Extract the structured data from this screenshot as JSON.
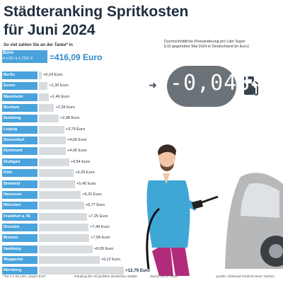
{
  "header": {
    "title_line1": "Städteranking Spritkosten",
    "title_line2": "für Juni 2024",
    "subtitle": "So viel zahlen Sie an der Tanke* in",
    "highlight_city": "Bonn",
    "highlight_formula": "4 x 60 l x 1,7337 €",
    "highlight_value": "=416,09 Euro"
  },
  "side": {
    "description": "Durchschnittliche Preisänderung pro Liter Super E10 gegenüber Mai 2024 in Deutschland (in Euro)",
    "change_value": "-0,0434"
  },
  "footer": {
    "note": "*für 4 x 60 Liter „Super E10\"",
    "ranking": "Ranking der 20 größten deutschen Städte",
    "date": "Stand: 01.07.2024",
    "source": "Quelle: infoRoad GmbH/Clever Tanken"
  },
  "chart_data": {
    "type": "bar",
    "title": "Städteranking Spritkosten für Juni 2024",
    "unit": "Euro",
    "categories": [
      "Berlin",
      "Essen",
      "Mannheim",
      "Bochum",
      "Duisburg",
      "Leipzig",
      "Düsseldorf",
      "Dortmund",
      "Stuttgart",
      "Köln",
      "Bielefeld",
      "Hannover",
      "München",
      "Frankfurt a. M.",
      "Dresden",
      "Bremen",
      "Hamburg",
      "Wuppertal",
      "Nürnberg"
    ],
    "values": [
      0.24,
      1.3,
      1.46,
      2.28,
      2.98,
      3.79,
      4.06,
      4.06,
      4.54,
      5.26,
      5.45,
      6.31,
      6.77,
      7.25,
      7.49,
      7.58,
      8.09,
      9.12,
      12.79
    ],
    "value_labels": [
      "+0,24 Euro",
      "+1,30 Euro",
      "+1,46 Euro",
      "+2,28 Euro",
      "+2,98 Euro",
      "+3,79 Euro",
      "+4,06 Euro",
      "+4,06 Euro",
      "+4,54 Euro",
      "+5,26 Euro",
      "+5,45 Euro",
      "+6,31 Euro",
      "+6,77 Euro",
      "+7,25 Euro",
      "+7,49 Euro",
      "+7,58 Euro",
      "+8,09 Euro",
      "+9,12 Euro",
      "+12,79 Euro"
    ],
    "colors": {
      "label_bg": "#4aa3dc",
      "bar": "#d9dcdf",
      "title": "#1f2f3f"
    }
  }
}
